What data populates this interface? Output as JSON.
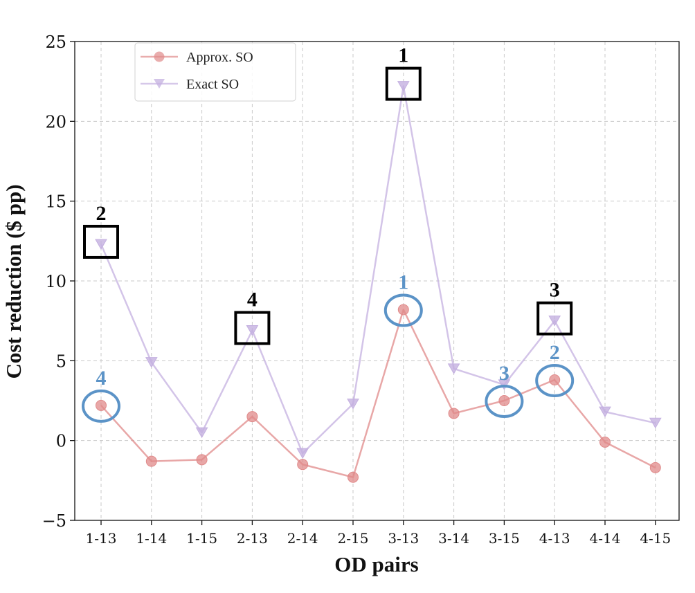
{
  "chart_data": {
    "type": "line",
    "xlabel": "OD pairs",
    "ylabel": "Cost reduction ($ pp)",
    "ylim": [
      -5,
      25
    ],
    "yticks": [
      -5,
      0,
      5,
      10,
      15,
      20,
      25
    ],
    "ytick_labels": [
      "−5",
      "0",
      "5",
      "10",
      "15",
      "20",
      "25"
    ],
    "grid": true,
    "legend_position": "top-left",
    "categories": [
      "1-13",
      "1-14",
      "1-15",
      "2-13",
      "2-14",
      "2-15",
      "3-13",
      "3-14",
      "3-15",
      "4-13",
      "4-14",
      "4-15"
    ],
    "series": [
      {
        "name": "Approx. SO",
        "color": "#e08a8a",
        "marker": "circle",
        "values": [
          2.2,
          -1.3,
          -1.2,
          1.5,
          -1.5,
          -2.3,
          8.2,
          1.7,
          2.5,
          3.8,
          -0.1,
          -1.7
        ]
      },
      {
        "name": "Exact SO",
        "color": "#c4b0e0",
        "marker": "triangle-down",
        "values": [
          12.3,
          4.9,
          0.5,
          6.9,
          -0.8,
          2.3,
          22.2,
          4.5,
          3.5,
          7.5,
          1.8,
          1.1
        ]
      }
    ],
    "annotations": [
      {
        "type": "box",
        "series": "Exact SO",
        "category": "3-13",
        "label": "1"
      },
      {
        "type": "box",
        "series": "Exact SO",
        "category": "1-13",
        "label": "2"
      },
      {
        "type": "box",
        "series": "Exact SO",
        "category": "4-13",
        "label": "3"
      },
      {
        "type": "box",
        "series": "Exact SO",
        "category": "2-13",
        "label": "4"
      },
      {
        "type": "circle",
        "series": "Approx. SO",
        "category": "3-13",
        "label": "1"
      },
      {
        "type": "circle",
        "series": "Approx. SO",
        "category": "4-13",
        "label": "2"
      },
      {
        "type": "circle",
        "series": "Approx. SO",
        "category": "3-15",
        "label": "3"
      },
      {
        "type": "circle",
        "series": "Approx. SO",
        "category": "1-13",
        "label": "4"
      }
    ],
    "annotation_colors": {
      "box": "#000000",
      "circle": "#5b93c7"
    }
  }
}
